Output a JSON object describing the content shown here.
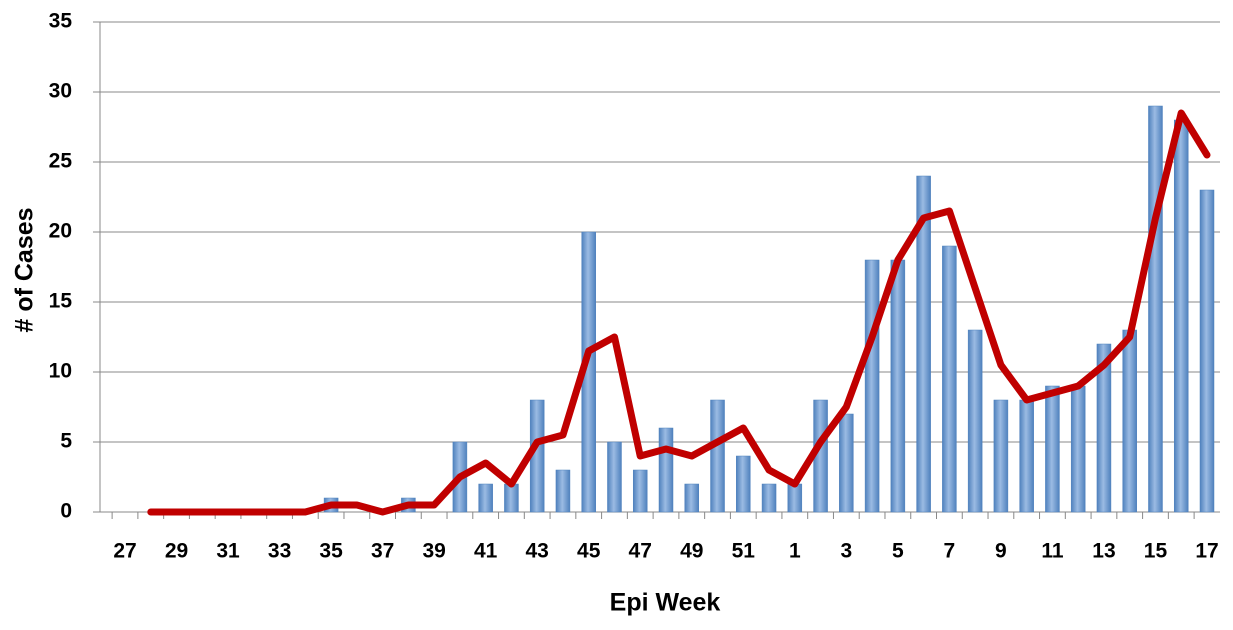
{
  "chart_data": {
    "type": "bar",
    "x_label": "Epi Week",
    "y_label": "# of Cases",
    "categories": [
      "27",
      null,
      "29",
      null,
      "31",
      null,
      "33",
      null,
      "35",
      null,
      "37",
      null,
      "39",
      null,
      "41",
      null,
      "43",
      null,
      "45",
      null,
      "47",
      null,
      "49",
      null,
      "51",
      null,
      "1",
      null,
      "3",
      null,
      "5",
      null,
      "7",
      null,
      "9",
      null,
      "11",
      null,
      "13",
      null,
      "15",
      null,
      "17"
    ],
    "series": [
      {
        "type": "bar",
        "color": "#4f81bd",
        "values": [
          0,
          0,
          0,
          0,
          0,
          0,
          0,
          0,
          1,
          0,
          0,
          1,
          0,
          5,
          2,
          2,
          8,
          3,
          20,
          5,
          3,
          6,
          2,
          8,
          4,
          2,
          2,
          8,
          7,
          18,
          18,
          24,
          19,
          13,
          8,
          8,
          9,
          9,
          12,
          13,
          29,
          28,
          23
        ]
      },
      {
        "type": "line",
        "color": "#c00000",
        "values": [
          null,
          0,
          0,
          0,
          0,
          0,
          0,
          0,
          0.5,
          0.5,
          0,
          0.5,
          0.5,
          2.5,
          3.5,
          2,
          5,
          5.5,
          11.5,
          12.5,
          4,
          4.5,
          4,
          5,
          6,
          3,
          2,
          5,
          7.5,
          12.5,
          18,
          21,
          21.5,
          16,
          10.5,
          8,
          8.5,
          9,
          10.5,
          12.5,
          21,
          28.5,
          25.5
        ]
      }
    ],
    "ylim": [
      0,
      35
    ],
    "yticks": [
      0,
      5,
      10,
      15,
      20,
      25,
      30,
      35
    ],
    "grid": true
  }
}
